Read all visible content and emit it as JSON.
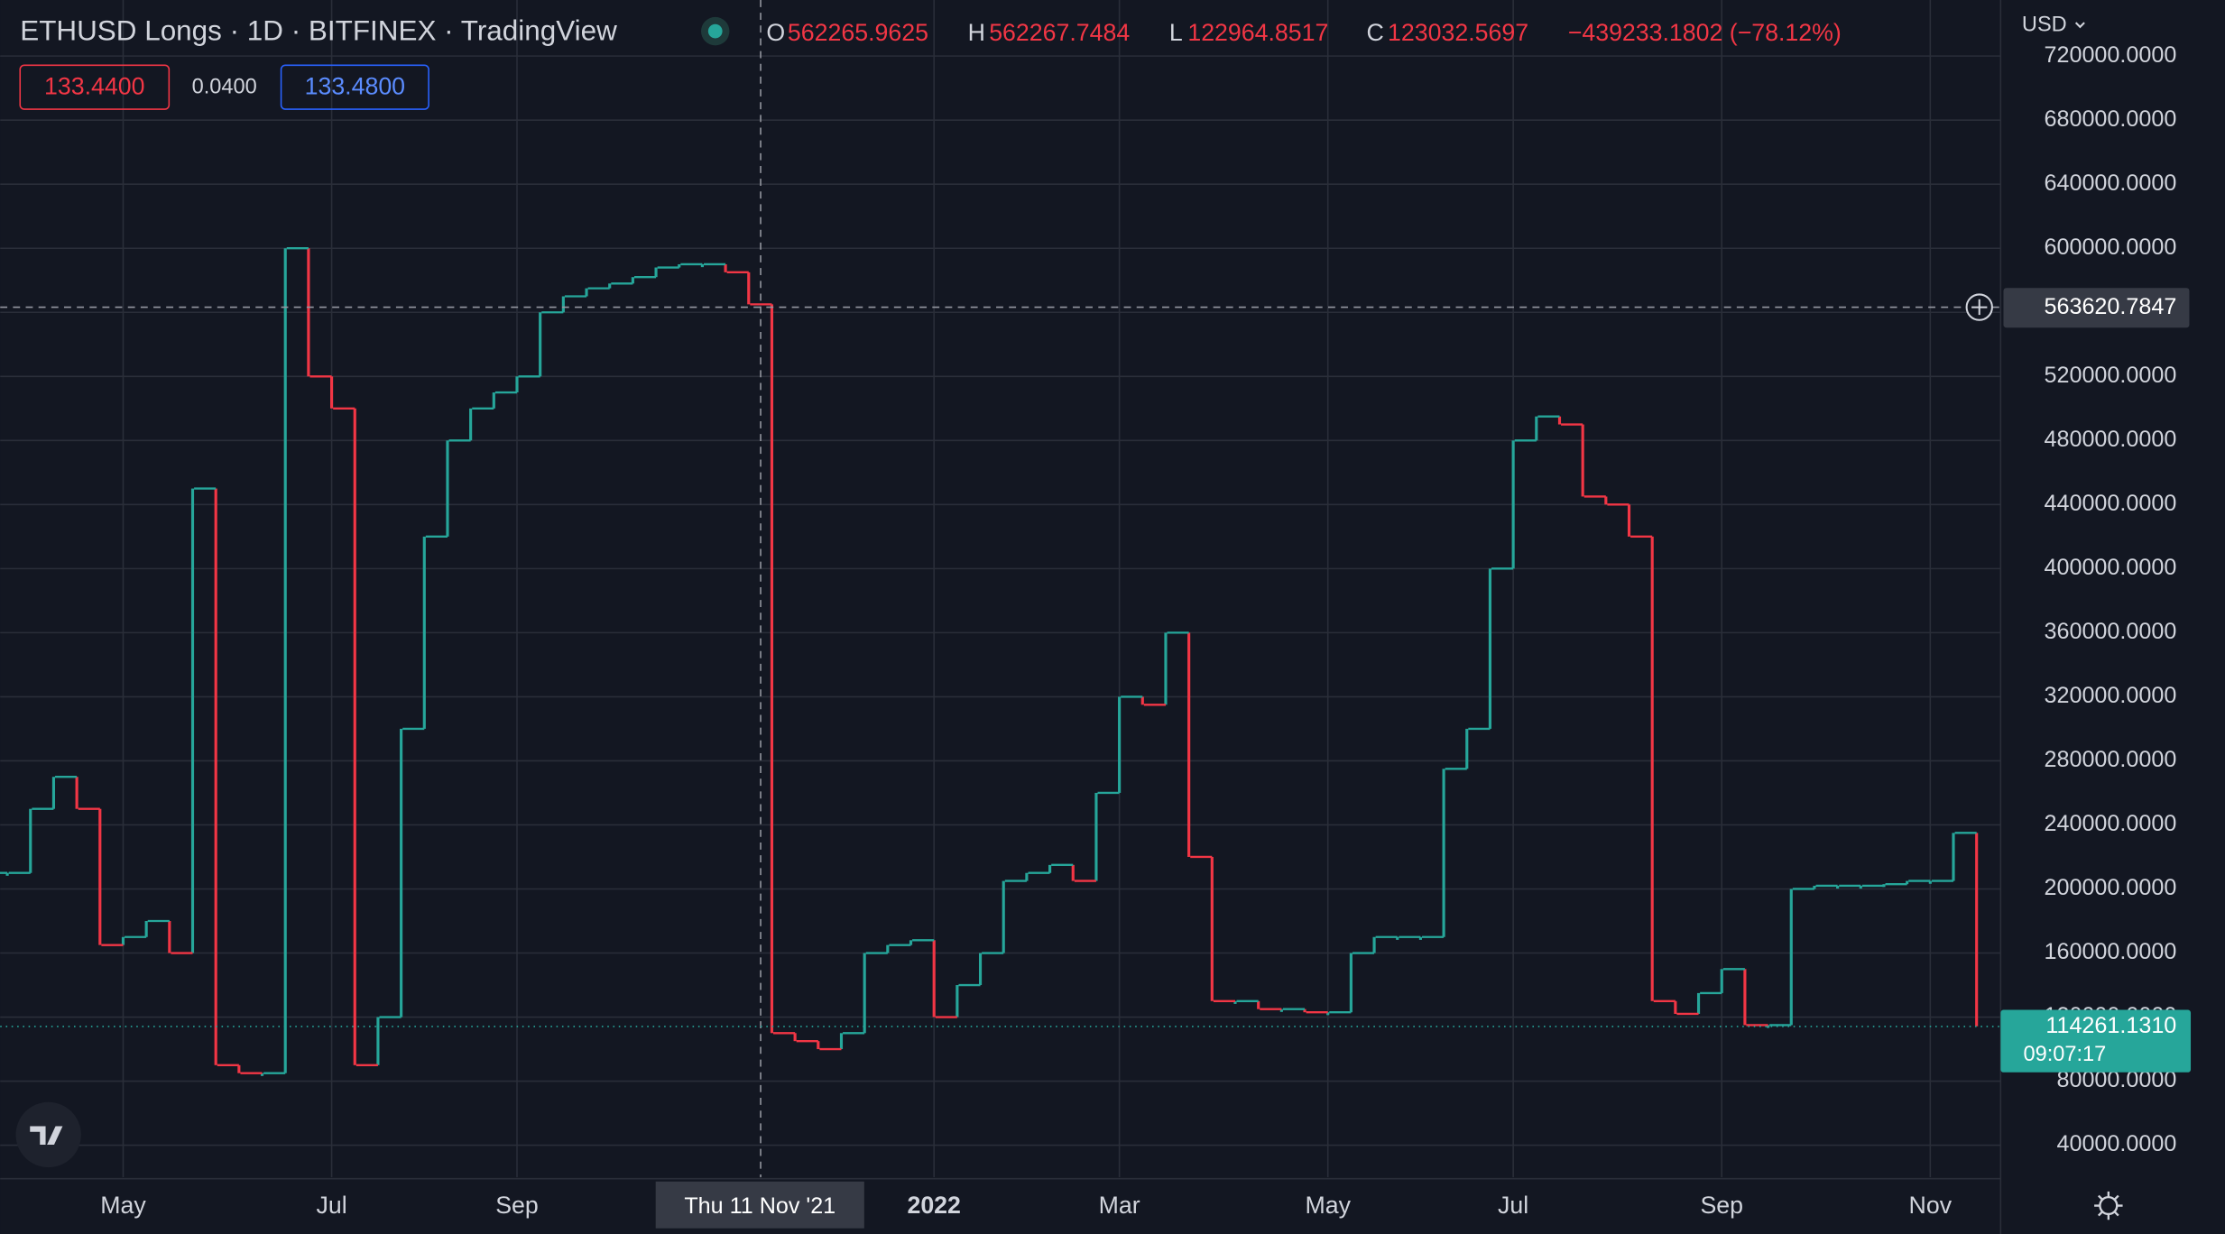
{
  "chart_data": {
    "type": "line",
    "title": "ETHUSD Longs · 1D · BITFINEX · TradingView",
    "categories": [
      null,
      null,
      null,
      null,
      null,
      "May",
      null,
      null,
      null,
      null,
      null,
      null,
      null,
      null,
      "Jul",
      null,
      null,
      null,
      null,
      null,
      null,
      null,
      "Sep",
      null,
      null,
      null,
      null,
      null,
      null,
      null,
      null,
      null,
      null,
      null,
      null,
      null,
      null,
      null,
      null,
      null,
      "2022",
      null,
      null,
      null,
      null,
      null,
      null,
      null,
      "Mar",
      null,
      null,
      null,
      null,
      null,
      null,
      null,
      null,
      "May",
      null,
      null,
      null,
      null,
      null,
      null,
      null,
      "Jul",
      null,
      null,
      null,
      null,
      null,
      null,
      null,
      null,
      "Sep",
      null,
      null,
      null,
      null,
      null,
      null,
      null,
      null,
      "Nov",
      null,
      null
    ],
    "values": [
      210000,
      250000,
      270000,
      250000,
      165000,
      170000,
      180000,
      160000,
      450000,
      90000,
      85000,
      85000,
      600000,
      520000,
      500000,
      90000,
      120000,
      300000,
      420000,
      480000,
      500000,
      510000,
      520000,
      560000,
      570000,
      575000,
      578000,
      582000,
      588000,
      590000,
      590000,
      585000,
      565000,
      110000,
      105000,
      100000,
      110000,
      160000,
      165000,
      168000,
      120000,
      140000,
      160000,
      205000,
      210000,
      215000,
      205000,
      260000,
      320000,
      315000,
      360000,
      220000,
      130000,
      130000,
      125000,
      125000,
      123000,
      123000,
      160000,
      170000,
      170000,
      170000,
      275000,
      300000,
      400000,
      480000,
      495000,
      490000,
      445000,
      440000,
      420000,
      130000,
      122000,
      135000,
      150000,
      115000,
      115000,
      200000,
      202000,
      202000,
      202000,
      203000,
      205000,
      205000,
      235000,
      114261.131
    ],
    "up_color": "#26a69a",
    "down_color": "#f23645",
    "grid": true,
    "ylim": [
      20000,
      755000
    ],
    "yticks": [
      {
        "value": 40000,
        "label": "40000.0000"
      },
      {
        "value": 80000,
        "label": "80000.0000"
      },
      {
        "value": 120000,
        "label": "120000.0000"
      },
      {
        "value": 160000,
        "label": "160000.0000"
      },
      {
        "value": 200000,
        "label": "200000.0000"
      },
      {
        "value": 240000,
        "label": "240000.0000"
      },
      {
        "value": 280000,
        "label": "280000.0000"
      },
      {
        "value": 320000,
        "label": "320000.0000"
      },
      {
        "value": 360000,
        "label": "360000.0000"
      },
      {
        "value": 400000,
        "label": "400000.0000"
      },
      {
        "value": 440000,
        "label": "440000.0000"
      },
      {
        "value": 480000,
        "label": "480000.0000"
      },
      {
        "value": 520000,
        "label": "520000.0000"
      },
      {
        "value": 560000,
        "label": "560000.0000"
      },
      {
        "value": 600000,
        "label": "600000.0000"
      },
      {
        "value": 640000,
        "label": "640000.0000"
      },
      {
        "value": 680000,
        "label": "680000.0000"
      },
      {
        "value": 720000,
        "label": "720000.0000"
      }
    ],
    "currency": "USD",
    "ohlc": {
      "o_label": "O",
      "o": "562265.9625",
      "h_label": "H",
      "h": "562267.7484",
      "l_label": "L",
      "l": "122964.8517",
      "c_label": "C",
      "c": "123032.5697",
      "change": "−439233.1802 (−78.12%)"
    },
    "boxes": {
      "bid": "133.4400",
      "spread": "0.0400",
      "ask": "133.4800"
    },
    "crosshair": {
      "price": "563620.7847",
      "date": "Thu 11 Nov '21"
    },
    "last_price": {
      "price": "114261.1310",
      "countdown": "09:07:17"
    }
  }
}
